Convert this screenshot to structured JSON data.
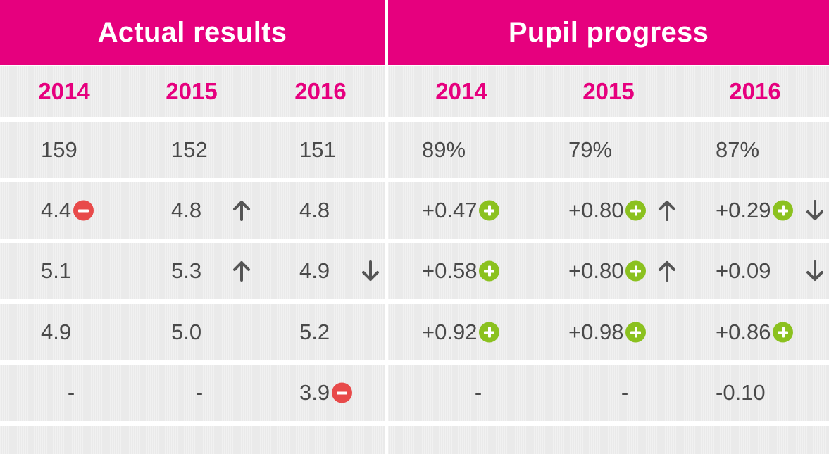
{
  "sections": {
    "actual": {
      "title": "Actual results",
      "years": [
        "2014",
        "2015",
        "2016"
      ],
      "rows": [
        [
          {
            "value": "159"
          },
          {
            "value": "152"
          },
          {
            "value": "151"
          }
        ],
        [
          {
            "value": "4.4",
            "badge": "minus-icon"
          },
          {
            "value": "4.8",
            "arrow": "arrow-up-icon"
          },
          {
            "value": "4.8"
          }
        ],
        [
          {
            "value": "5.1"
          },
          {
            "value": "5.3",
            "arrow": "arrow-up-icon"
          },
          {
            "value": "4.9",
            "arrow": "arrow-down-icon"
          }
        ],
        [
          {
            "value": "4.9"
          },
          {
            "value": "5.0"
          },
          {
            "value": "5.2"
          }
        ],
        [
          {
            "value": "-"
          },
          {
            "value": "-"
          },
          {
            "value": "3.9",
            "badge": "minus-icon"
          }
        ]
      ]
    },
    "progress": {
      "title": "Pupil progress",
      "years": [
        "2014",
        "2015",
        "2016"
      ],
      "rows": [
        [
          {
            "value": "89%"
          },
          {
            "value": "79%"
          },
          {
            "value": "87%"
          }
        ],
        [
          {
            "value": "+0.47",
            "badge": "plus-icon"
          },
          {
            "value": "+0.80",
            "badge": "plus-icon",
            "arrow": "arrow-up-icon"
          },
          {
            "value": "+0.29",
            "badge": "plus-icon",
            "arrow": "arrow-down-icon"
          }
        ],
        [
          {
            "value": "+0.58",
            "badge": "plus-icon"
          },
          {
            "value": "+0.80",
            "badge": "plus-icon",
            "arrow": "arrow-up-icon"
          },
          {
            "value": "+0.09",
            "arrow": "arrow-down-icon"
          }
        ],
        [
          {
            "value": "+0.92",
            "badge": "plus-icon"
          },
          {
            "value": "+0.98",
            "badge": "plus-icon"
          },
          {
            "value": "+0.86",
            "badge": "plus-icon"
          }
        ],
        [
          {
            "value": "-"
          },
          {
            "value": "-"
          },
          {
            "value": "-0.10"
          }
        ]
      ]
    }
  },
  "colors": {
    "header_bg": "#e6007e",
    "year_text": "#e6007e",
    "row_bg": "#eaeaea",
    "value_text": "#4a4a4a",
    "plus_badge": "#8bc11f",
    "minus_badge": "#e84a4a",
    "arrow": "#555555"
  }
}
